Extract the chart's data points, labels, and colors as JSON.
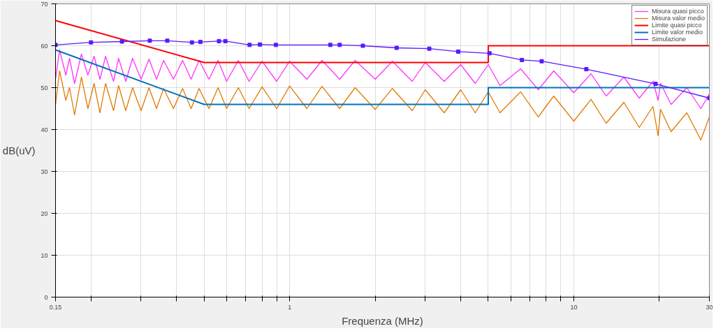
{
  "chart_data": {
    "type": "line",
    "xlabel": "Frequenza (MHz)",
    "ylabel": "dB(uV)",
    "log": "x",
    "xlim": [
      0.15,
      30
    ],
    "ylim": [
      0,
      70
    ],
    "xticks": [
      0.15,
      {
        "value": 0.2,
        "label": null
      },
      {
        "value": 0.3,
        "label": null
      },
      {
        "value": 0.4,
        "label": null
      },
      {
        "value": 0.5,
        "label": null
      },
      {
        "value": 0.6,
        "label": null
      },
      {
        "value": 0.7,
        "label": null
      },
      {
        "value": 0.8,
        "label": null
      },
      {
        "value": 0.9,
        "label": null
      },
      1,
      {
        "value": 2,
        "label": null
      },
      {
        "value": 3,
        "label": null
      },
      {
        "value": 4,
        "label": null
      },
      {
        "value": 5,
        "label": null
      },
      {
        "value": 6,
        "label": null
      },
      {
        "value": 7,
        "label": null
      },
      {
        "value": 8,
        "label": null
      },
      {
        "value": 9,
        "label": null
      },
      10,
      {
        "value": 20,
        "label": null
      },
      30
    ],
    "yticks": [
      0,
      10,
      20,
      30,
      40,
      50,
      60,
      70
    ],
    "grid": true,
    "legend": "top right",
    "line_style": "solid",
    "series": [
      {
        "name": "Misura quasi picco",
        "color": "#ff33ff",
        "marker": "none",
        "x": [
          0.15,
          0.155,
          0.163,
          0.168,
          0.175,
          0.185,
          0.195,
          0.205,
          0.215,
          0.225,
          0.24,
          0.25,
          0.265,
          0.28,
          0.3,
          0.32,
          0.34,
          0.36,
          0.39,
          0.42,
          0.45,
          0.48,
          0.52,
          0.56,
          0.6,
          0.66,
          0.72,
          0.8,
          0.9,
          1.0,
          1.15,
          1.3,
          1.5,
          1.7,
          2.0,
          2.3,
          2.7,
          3.0,
          3.5,
          4.0,
          4.5,
          5.0,
          5.5,
          6.5,
          7.5,
          8.5,
          10,
          11.5,
          13,
          15,
          17,
          19,
          19.8,
          20.2,
          22,
          25,
          28,
          30
        ],
        "values": [
          52,
          59,
          53,
          57,
          51,
          58,
          53,
          57.5,
          52,
          57.5,
          51.5,
          57,
          51.5,
          57,
          52,
          56.8,
          52,
          56.5,
          52,
          56.5,
          52,
          56.5,
          52,
          56.5,
          51.5,
          56.5,
          51.5,
          56.3,
          51.5,
          56.3,
          52,
          56.5,
          52,
          56.5,
          52,
          56.3,
          51.5,
          56,
          51.5,
          55.5,
          51,
          55.5,
          50.5,
          54.5,
          49.5,
          54,
          48.8,
          53.3,
          48,
          52.5,
          47.5,
          51.5,
          47,
          51,
          46,
          50,
          45,
          48.5
        ]
      },
      {
        "name": "Misura valor medio",
        "color": "#e07b00",
        "marker": "none",
        "x": [
          0.15,
          0.155,
          0.163,
          0.168,
          0.175,
          0.185,
          0.195,
          0.205,
          0.215,
          0.225,
          0.24,
          0.25,
          0.265,
          0.28,
          0.3,
          0.32,
          0.34,
          0.36,
          0.39,
          0.42,
          0.45,
          0.48,
          0.52,
          0.56,
          0.6,
          0.66,
          0.72,
          0.8,
          0.9,
          1.0,
          1.15,
          1.3,
          1.5,
          1.7,
          2.0,
          2.3,
          2.7,
          3.0,
          3.5,
          4.0,
          4.5,
          5.0,
          5.5,
          6.5,
          7.5,
          8.5,
          10,
          11.5,
          13,
          15,
          17,
          19,
          19.8,
          20.2,
          22,
          25,
          28,
          30
        ],
        "values": [
          46,
          54,
          47,
          50,
          43.5,
          52.5,
          45,
          51,
          44,
          51,
          44.5,
          50.5,
          44.5,
          50,
          44.5,
          50,
          45,
          49.8,
          45,
          49.8,
          45,
          49.8,
          45,
          50,
          45,
          50,
          45,
          50.2,
          45,
          50.4,
          45,
          50.3,
          45,
          50,
          44.8,
          49.8,
          44.5,
          49.5,
          44,
          49.5,
          44,
          49,
          44,
          49,
          43,
          48,
          42,
          47.2,
          41.5,
          46.5,
          40.5,
          45.5,
          38.5,
          44.8,
          39.5,
          44,
          37.5,
          43
        ]
      },
      {
        "name": "Limite quasi picco",
        "color": "#ff0000",
        "marker": "none",
        "x": [
          0.15,
          0.5,
          5,
          5,
          30
        ],
        "values": [
          66,
          56,
          56,
          60,
          60
        ]
      },
      {
        "name": "Limite valor medio",
        "color": "#0072bd",
        "marker": "none",
        "x": [
          0.15,
          0.5,
          5,
          5,
          30
        ],
        "values": [
          59,
          46,
          46,
          50,
          50
        ]
      },
      {
        "name": "Simulazione",
        "color": "#5a1aff",
        "marker": "square",
        "x": [
          0.15,
          0.2,
          0.257,
          0.322,
          0.371,
          0.453,
          0.485,
          0.564,
          0.594,
          0.723,
          0.786,
          0.894,
          1.39,
          1.5,
          1.81,
          2.38,
          3.1,
          3.92,
          5.05,
          6.57,
          7.71,
          11.07,
          19.4,
          30
        ],
        "values": [
          60.2,
          60.8,
          61.0,
          61.2,
          61.2,
          60.8,
          60.9,
          61.1,
          61.1,
          60.2,
          60.3,
          60.2,
          60.2,
          60.2,
          60.0,
          59.5,
          59.3,
          58.6,
          58.2,
          56.6,
          56.3,
          54.4,
          50.9,
          47.5
        ]
      }
    ]
  }
}
